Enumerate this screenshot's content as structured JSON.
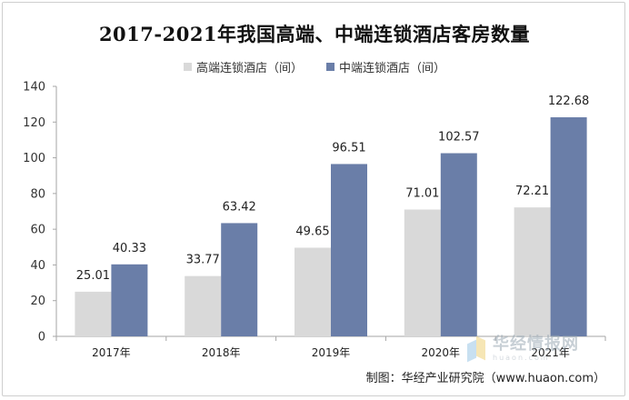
{
  "chart_data": {
    "type": "bar",
    "title": "2017-2021年我国高端、中端连锁酒店客房数量",
    "categories": [
      "2017年",
      "2018年",
      "2019年",
      "2020年",
      "2021年"
    ],
    "series": [
      {
        "name": "高端连锁酒店（间）",
        "values": [
          25.01,
          33.77,
          49.65,
          71.01,
          72.21
        ],
        "color": "#d9d9d9"
      },
      {
        "name": "中端连锁酒店（间）",
        "values": [
          40.33,
          63.42,
          96.51,
          102.57,
          122.68
        ],
        "color": "#6a7ea8"
      }
    ],
    "ylim": [
      0,
      140
    ],
    "yticks": [
      0,
      20,
      40,
      60,
      80,
      100,
      120,
      140
    ],
    "grid": false,
    "legend_position": "top"
  },
  "watermark": {
    "main": "华经情报网",
    "sub": "huaon.com"
  },
  "footer": "制图：华经产业研究院（www.huaon.com）"
}
